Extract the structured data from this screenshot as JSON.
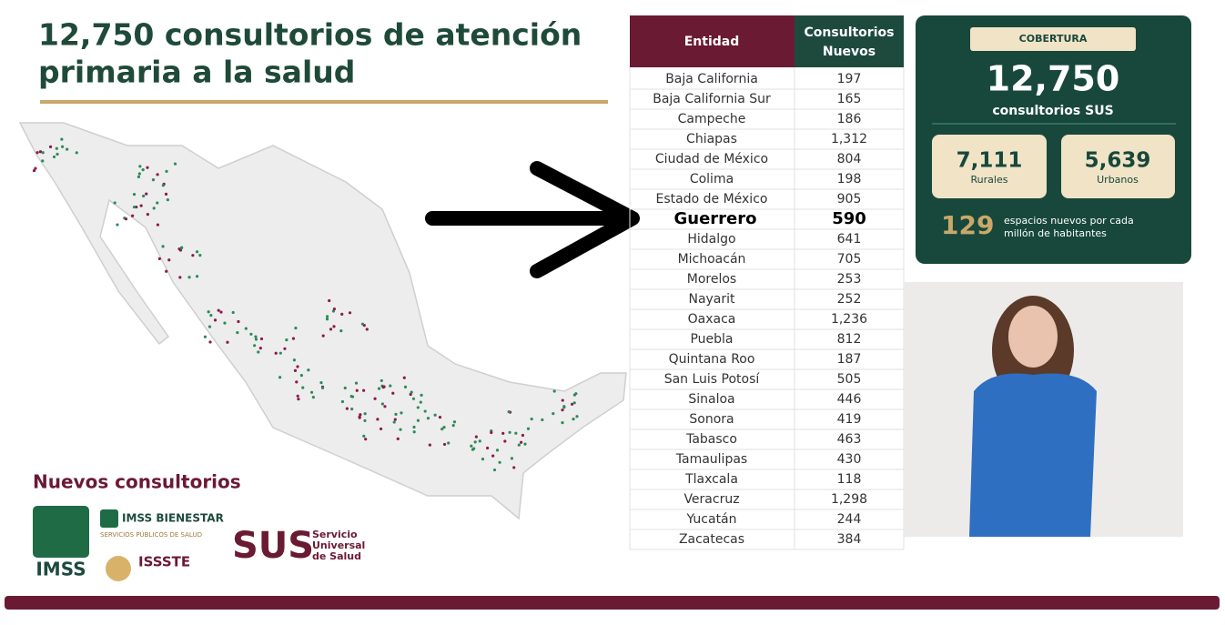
{
  "title": [
    "12,750 consultorios de atención",
    "primaria a la salud"
  ],
  "table": {
    "header": {
      "entity": "Entidad",
      "count": [
        "Consultorios",
        "Nuevos"
      ]
    },
    "rows": [
      [
        "Baja California",
        "197"
      ],
      [
        "Baja California Sur",
        "165"
      ],
      [
        "Campeche",
        "186"
      ],
      [
        "Chiapas",
        "1,312"
      ],
      [
        "Ciudad de México",
        "804"
      ],
      [
        "Colima",
        "198"
      ],
      [
        "Estado de México",
        "905"
      ],
      [
        "Guerrero",
        "590"
      ],
      [
        "Hidalgo",
        "641"
      ],
      [
        "Michoacán",
        "705"
      ],
      [
        "Morelos",
        "253"
      ],
      [
        "Nayarit",
        "252"
      ],
      [
        "Oaxaca",
        "1,236"
      ],
      [
        "Puebla",
        "812"
      ],
      [
        "Quintana Roo",
        "187"
      ],
      [
        "San Luis Potosí",
        "505"
      ],
      [
        "Sinaloa",
        "446"
      ],
      [
        "Sonora",
        "419"
      ],
      [
        "Tabasco",
        "463"
      ],
      [
        "Tamaulipas",
        "430"
      ],
      [
        "Tlaxcala",
        "118"
      ],
      [
        "Veracruz",
        "1,298"
      ],
      [
        "Yucatán",
        "244"
      ],
      [
        "Zacatecas",
        "384"
      ]
    ],
    "highlight_row": 7
  },
  "coverage": {
    "label": "COBERTURA",
    "total": "12,750",
    "total_caption": "consultorios SUS",
    "rural": "7,111",
    "rural_caption": "Rurales",
    "urban": "5,639",
    "urban_caption": "Urbanos",
    "per_million": "129",
    "per_million_caption": [
      "espacios nuevos por cada",
      "millón de habitantes"
    ]
  },
  "logos": {
    "heading": "Nuevos consultorios",
    "imss": "IMSS",
    "bienestar": "IMSS BIENESTAR",
    "bienestar_sub": "SERVICIOS PÚBLICOS DE SALUD",
    "issste": "ISSSTE",
    "sus": "SUS",
    "sus_caption": [
      "Servicio",
      "Universal",
      "de Salud"
    ]
  }
}
